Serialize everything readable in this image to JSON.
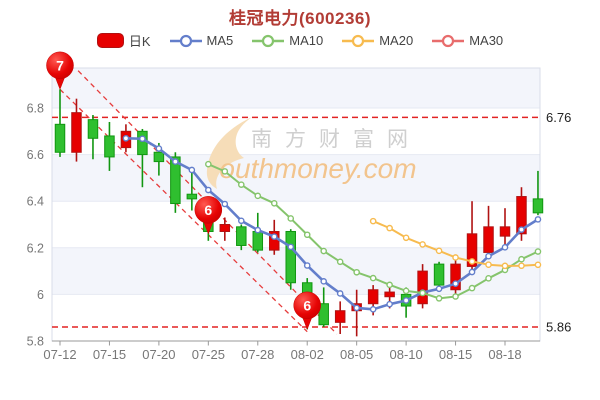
{
  "title": "桂冠电力(600236)",
  "legend": {
    "items": [
      {
        "label": "日K",
        "type": "candle",
        "color": "#e60000",
        "border": "#b01212"
      },
      {
        "label": "MA5",
        "type": "line",
        "color": "#637ecb"
      },
      {
        "label": "MA10",
        "type": "line",
        "color": "#85c46c"
      },
      {
        "label": "MA20",
        "type": "line",
        "color": "#f7bb4f"
      },
      {
        "label": "MA30",
        "type": "line",
        "color": "#e86c6c"
      }
    ]
  },
  "watermark": {
    "cn": "南方财富网",
    "en": "outhmoney.com"
  },
  "colors": {
    "title": "#b23c35",
    "up": "#e60000",
    "up_border": "#b01212",
    "down": "#2fbf2f",
    "down_border": "#119611",
    "ma5": "#637ecb",
    "ma10": "#85c46c",
    "ma20": "#f7bb4f",
    "ma30": "#e86c6c",
    "ref_line": "#e32222",
    "trend_line": "#e63c3c",
    "axis_text": "#777777",
    "ref_label_text": "#222222",
    "stripe": "#f3f5fb",
    "grid_line": "#e6e9f3",
    "plot_border": "#d9dde8",
    "balloon": "#e60404",
    "balloon_border": "#c50000",
    "watermark_cn": "#cfcfcf",
    "watermark_en": "#f2c48d",
    "watermark_swoosh": "#f6ddb8"
  },
  "ref_lines": {
    "upper": {
      "value": 6.76,
      "label": "6.76"
    },
    "lower": {
      "value": 5.86,
      "label": "5.86"
    }
  },
  "trend_lines": [
    {
      "from_index": 0,
      "from_price": 6.88,
      "to_index": 15,
      "to_price": 5.84
    },
    {
      "from_index": 1.1,
      "from_price": 6.96,
      "to_index": 16.8,
      "to_price": 5.83
    }
  ],
  "markers": [
    {
      "label": "7",
      "candle_index": 0,
      "anchor_price": 6.88
    },
    {
      "label": "6",
      "candle_index": 9,
      "anchor_price": 6.26
    },
    {
      "label": "6",
      "candle_index": 15,
      "anchor_price": 5.85
    }
  ],
  "chart_data": {
    "type": "candlestick",
    "title": "桂冠电力(600236)",
    "symbol": "桂冠电力",
    "code": "600236",
    "x_tick_labels": [
      "07-12",
      "07-15",
      "07-20",
      "07-25",
      "07-28",
      "08-02",
      "08-05",
      "08-10",
      "08-15",
      "08-18"
    ],
    "x_tick_indices": [
      0,
      3,
      6,
      9,
      12,
      15,
      18,
      21,
      24,
      27
    ],
    "n_candles": 30,
    "y_ticks": [
      6.8,
      6.6,
      6.4,
      6.2,
      6.0,
      5.8
    ],
    "y_tick_labels": [
      "6.8",
      "6.6",
      "6.4",
      "6.2",
      "6",
      "5.8"
    ],
    "ylim": [
      5.8,
      6.97
    ],
    "ref_values": [
      6.76,
      5.86
    ],
    "ma_periods": [
      5,
      10,
      20,
      30
    ],
    "candles_ohlc_format": [
      "open",
      "close",
      "low",
      "high"
    ],
    "candles": [
      [
        6.73,
        6.61,
        6.59,
        6.88
      ],
      [
        6.61,
        6.78,
        6.57,
        6.84
      ],
      [
        6.75,
        6.67,
        6.58,
        6.77
      ],
      [
        6.68,
        6.59,
        6.53,
        6.74
      ],
      [
        6.63,
        6.7,
        6.61,
        6.73
      ],
      [
        6.7,
        6.6,
        6.46,
        6.71
      ],
      [
        6.61,
        6.57,
        6.51,
        6.65
      ],
      [
        6.59,
        6.39,
        6.35,
        6.61
      ],
      [
        6.43,
        6.41,
        6.36,
        6.54
      ],
      [
        6.32,
        6.27,
        6.23,
        6.33
      ],
      [
        6.27,
        6.3,
        6.23,
        6.33
      ],
      [
        6.29,
        6.21,
        6.19,
        6.3
      ],
      [
        6.27,
        6.19,
        6.18,
        6.35
      ],
      [
        6.19,
        6.27,
        6.17,
        6.32
      ],
      [
        6.27,
        6.05,
        6.02,
        6.28
      ],
      [
        6.05,
        5.9,
        5.85,
        6.07
      ],
      [
        5.96,
        5.87,
        5.86,
        6.03
      ],
      [
        5.88,
        5.93,
        5.83,
        5.97
      ],
      [
        5.93,
        5.96,
        5.82,
        6.02
      ],
      [
        5.96,
        6.02,
        5.91,
        6.04
      ],
      [
        5.99,
        6.01,
        5.94,
        6.04
      ],
      [
        6.0,
        5.95,
        5.9,
        6.03
      ],
      [
        5.96,
        6.1,
        5.94,
        6.13
      ],
      [
        6.13,
        6.04,
        6.02,
        6.14
      ],
      [
        6.02,
        6.13,
        5.99,
        6.17
      ],
      [
        6.12,
        6.26,
        6.09,
        6.4
      ],
      [
        6.18,
        6.29,
        6.16,
        6.38
      ],
      [
        6.25,
        6.29,
        6.21,
        6.37
      ],
      [
        6.26,
        6.42,
        6.23,
        6.46
      ],
      [
        6.41,
        6.35,
        6.34,
        6.53
      ]
    ]
  }
}
